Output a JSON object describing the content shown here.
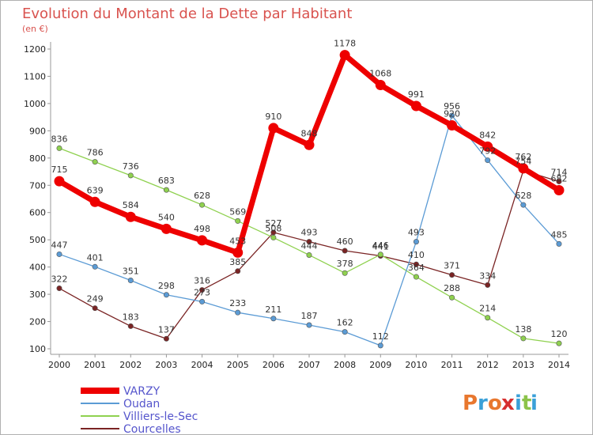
{
  "chart_data": {
    "type": "line",
    "title": "Evolution du Montant de la Dette par Habitant",
    "subtitle": "(en €)",
    "xlabel": "",
    "ylabel": "",
    "ylim": [
      100,
      1200
    ],
    "yticks": [
      100,
      200,
      300,
      400,
      500,
      600,
      700,
      800,
      900,
      1000,
      1100,
      1200
    ],
    "categories": [
      "2000",
      "2001",
      "2002",
      "2003",
      "2004",
      "2005",
      "2006",
      "2007",
      "2008",
      "2009",
      "2010",
      "2011",
      "2012",
      "2013",
      "2014"
    ],
    "grid": false,
    "legend_position": "bottom-left",
    "series": [
      {
        "name": "VARZY",
        "color": "#ee0000",
        "values": [
          715,
          639,
          584,
          540,
          498,
          453,
          910,
          848,
          1178,
          1068,
          991,
          920,
          842,
          762,
          682
        ]
      },
      {
        "name": "Oudan",
        "color": "#5b9bd5",
        "values": [
          447,
          401,
          351,
          298,
          273,
          233,
          211,
          187,
          162,
          112,
          493,
          956,
          792,
          628,
          485
        ]
      },
      {
        "name": "Villiers-le-Sec",
        "color": "#8fd14f",
        "values": [
          836,
          786,
          736,
          683,
          628,
          569,
          508,
          444,
          378,
          446,
          364,
          288,
          214,
          138,
          120
        ]
      },
      {
        "name": "Courcelles",
        "color": "#7a2424",
        "values": [
          322,
          249,
          183,
          137,
          316,
          385,
          527,
          493,
          460,
          441,
          410,
          371,
          334,
          754,
          714
        ]
      }
    ]
  },
  "logo": {
    "letters": [
      "P",
      "r",
      "o",
      "x",
      "i",
      "t",
      "i"
    ],
    "colors": [
      "#e8772e",
      "#3aa0d8",
      "#e8772e",
      "#d62f2f",
      "#3aa0d8",
      "#8bc34a",
      "#3aa0d8"
    ]
  }
}
